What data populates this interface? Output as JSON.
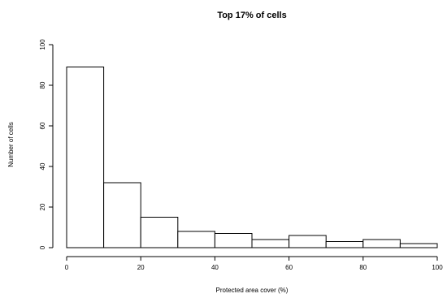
{
  "chart_data": {
    "type": "bar",
    "title": "Top 17% of cells",
    "xlabel": "Protected area cover (%)",
    "ylabel": "Number of cells",
    "bins": [
      {
        "from": 0,
        "to": 10,
        "count": 89
      },
      {
        "from": 10,
        "to": 20,
        "count": 32
      },
      {
        "from": 20,
        "to": 30,
        "count": 15
      },
      {
        "from": 30,
        "to": 40,
        "count": 8
      },
      {
        "from": 40,
        "to": 50,
        "count": 7
      },
      {
        "from": 50,
        "to": 60,
        "count": 4
      },
      {
        "from": 60,
        "to": 70,
        "count": 6
      },
      {
        "from": 70,
        "to": 80,
        "count": 3
      },
      {
        "from": 80,
        "to": 90,
        "count": 4
      },
      {
        "from": 90,
        "to": 100,
        "count": 2
      }
    ],
    "xlim": [
      0,
      100
    ],
    "ylim": [
      0,
      100
    ],
    "x_ticks": [
      "0",
      "20",
      "40",
      "60",
      "80",
      "100"
    ],
    "y_ticks": [
      "0",
      "20",
      "40",
      "60",
      "80",
      "100"
    ],
    "grid": false,
    "legend": "none"
  }
}
